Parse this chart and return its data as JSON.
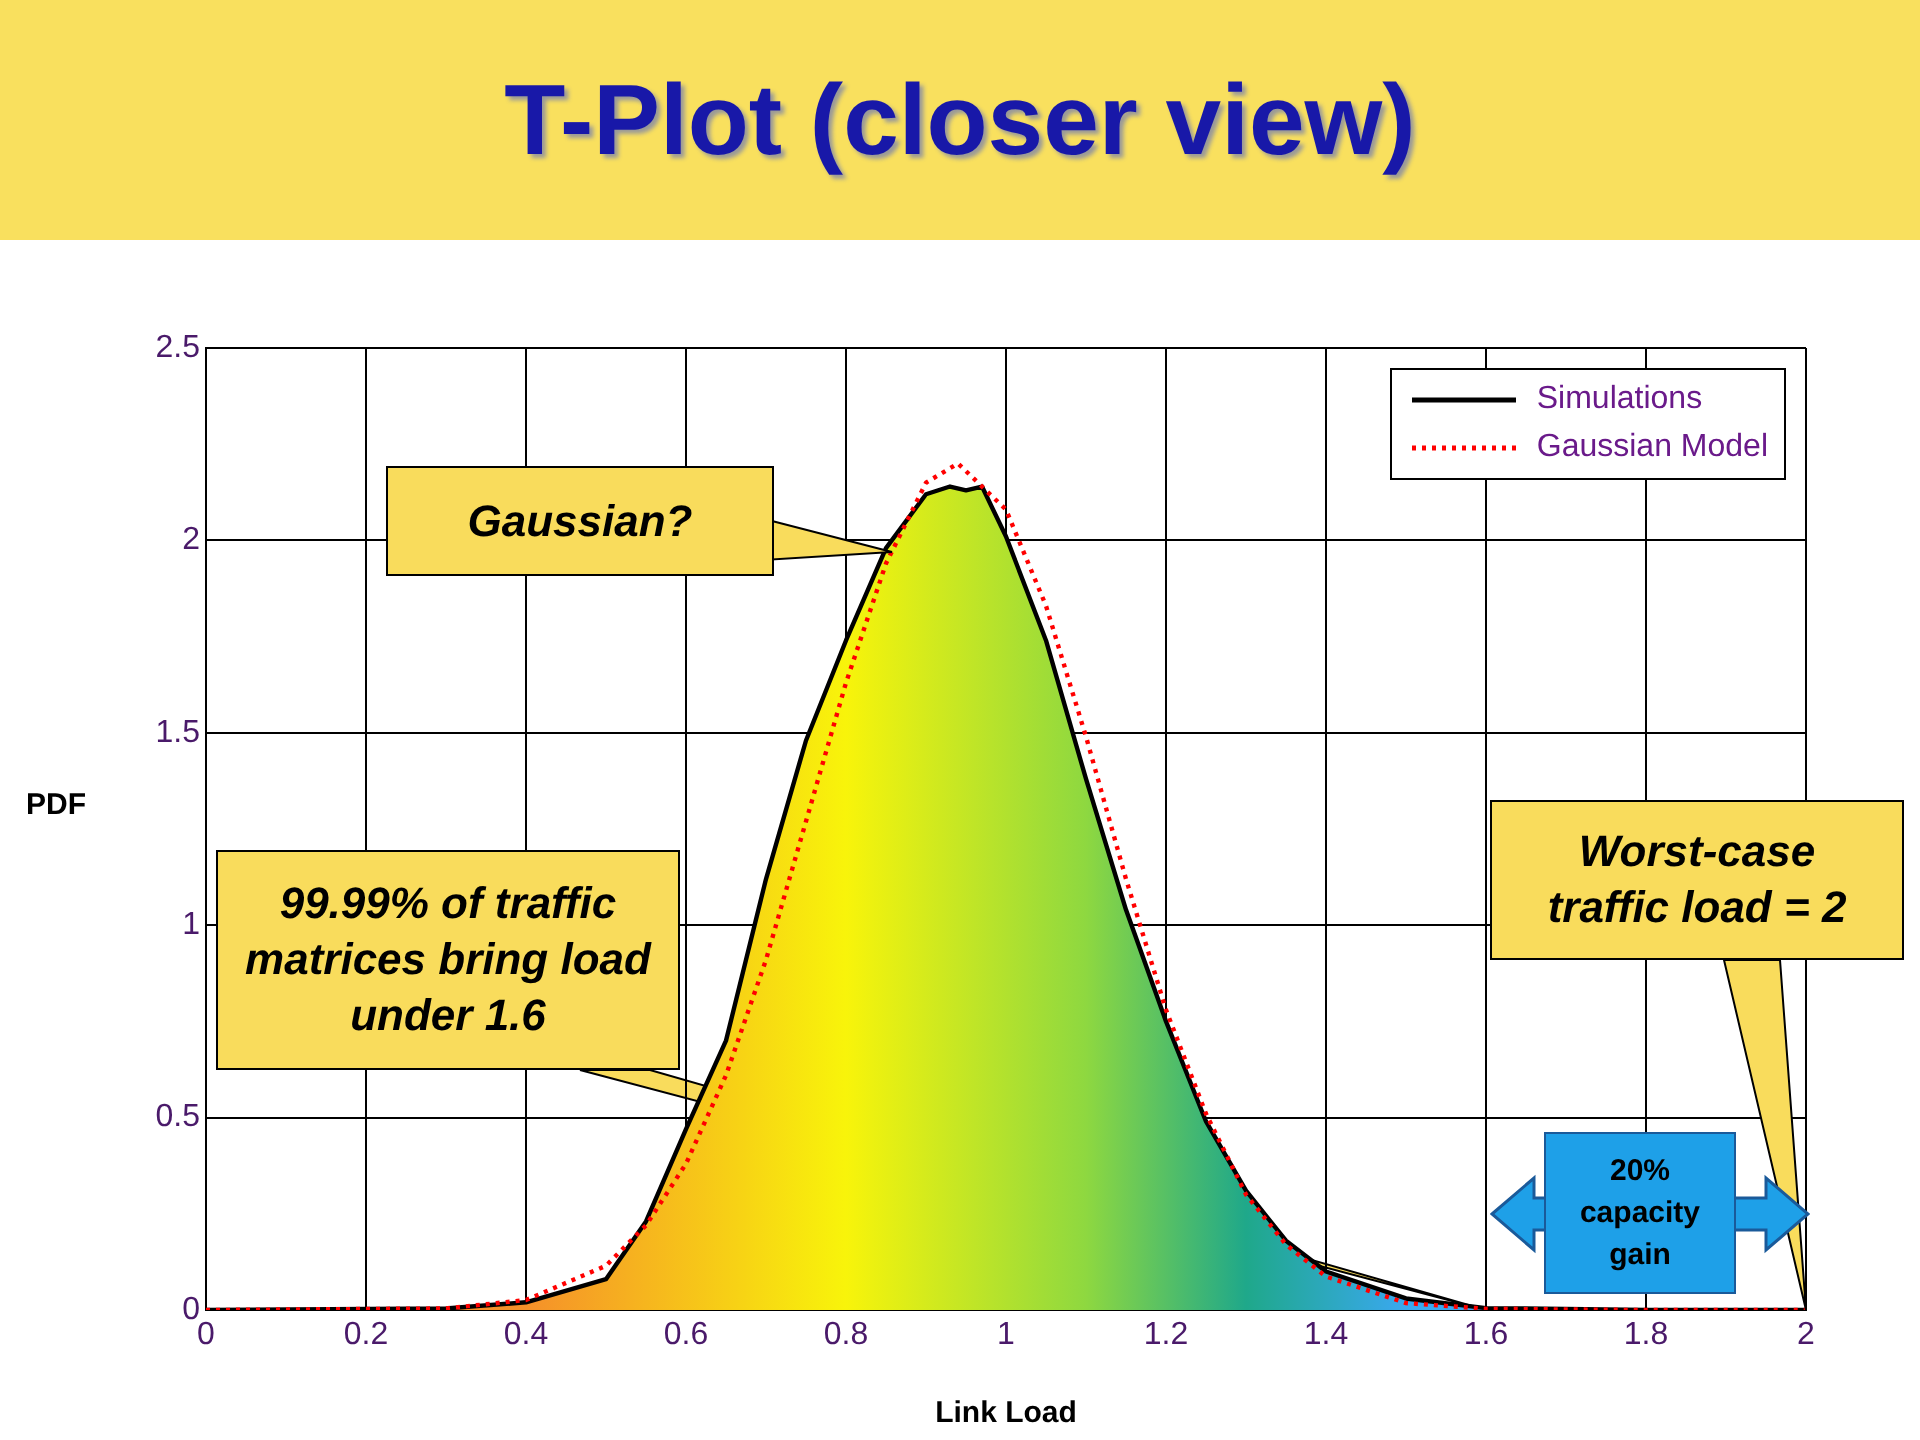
{
  "chart_data": {
    "type": "line",
    "title": "T-Plot (closer view)",
    "xlabel": "Link Load",
    "ylabel": "PDF",
    "xlim": [
      0,
      2
    ],
    "ylim": [
      0,
      2.5
    ],
    "xticks": [
      0,
      0.2,
      0.4,
      0.6,
      0.8,
      1,
      1.2,
      1.4,
      1.6,
      1.8,
      2
    ],
    "yticks": [
      0,
      0.5,
      1,
      1.5,
      2,
      2.5
    ],
    "grid": true,
    "legend": "top right",
    "series": [
      {
        "name": "Simulations",
        "type": "area",
        "color": "#000000",
        "line_style": "solid",
        "x": [
          0,
          0.3,
          0.4,
          0.5,
          0.55,
          0.6,
          0.65,
          0.7,
          0.75,
          0.8,
          0.85,
          0.9,
          0.93,
          0.95,
          0.97,
          1.0,
          1.05,
          1.1,
          1.15,
          1.2,
          1.25,
          1.3,
          1.35,
          1.4,
          1.5,
          1.6,
          1.8,
          2
        ],
        "values": [
          0,
          0.004,
          0.02,
          0.08,
          0.23,
          0.47,
          0.7,
          1.12,
          1.48,
          1.74,
          1.98,
          2.12,
          2.14,
          2.13,
          2.14,
          2.01,
          1.74,
          1.38,
          1.04,
          0.75,
          0.49,
          0.31,
          0.18,
          0.1,
          0.03,
          0.005,
          0,
          0
        ]
      },
      {
        "name": "Gaussian Model",
        "type": "line",
        "color": "#ff0000",
        "line_style": "dotted",
        "x": [
          0,
          0.3,
          0.4,
          0.5,
          0.55,
          0.6,
          0.65,
          0.7,
          0.75,
          0.8,
          0.85,
          0.9,
          0.94,
          1.0,
          1.05,
          1.1,
          1.15,
          1.2,
          1.25,
          1.3,
          1.35,
          1.4,
          1.5,
          1.6,
          1.8,
          2
        ],
        "values": [
          0,
          0.004,
          0.026,
          0.115,
          0.22,
          0.38,
          0.61,
          0.91,
          1.27,
          1.63,
          1.94,
          2.15,
          2.2,
          2.08,
          1.83,
          1.49,
          1.12,
          0.78,
          0.51,
          0.3,
          0.17,
          0.087,
          0.018,
          0.003,
          0,
          0
        ]
      }
    ],
    "annotations": [
      "Gaussian?",
      {
        "text": "99.99% of traffic matrices bring load under 1.6",
        "x": 1.6,
        "y": 0
      },
      {
        "text": "Worst-case traffic load = 2",
        "x": 2,
        "y": 0
      },
      "20% capacity gain"
    ]
  }
}
